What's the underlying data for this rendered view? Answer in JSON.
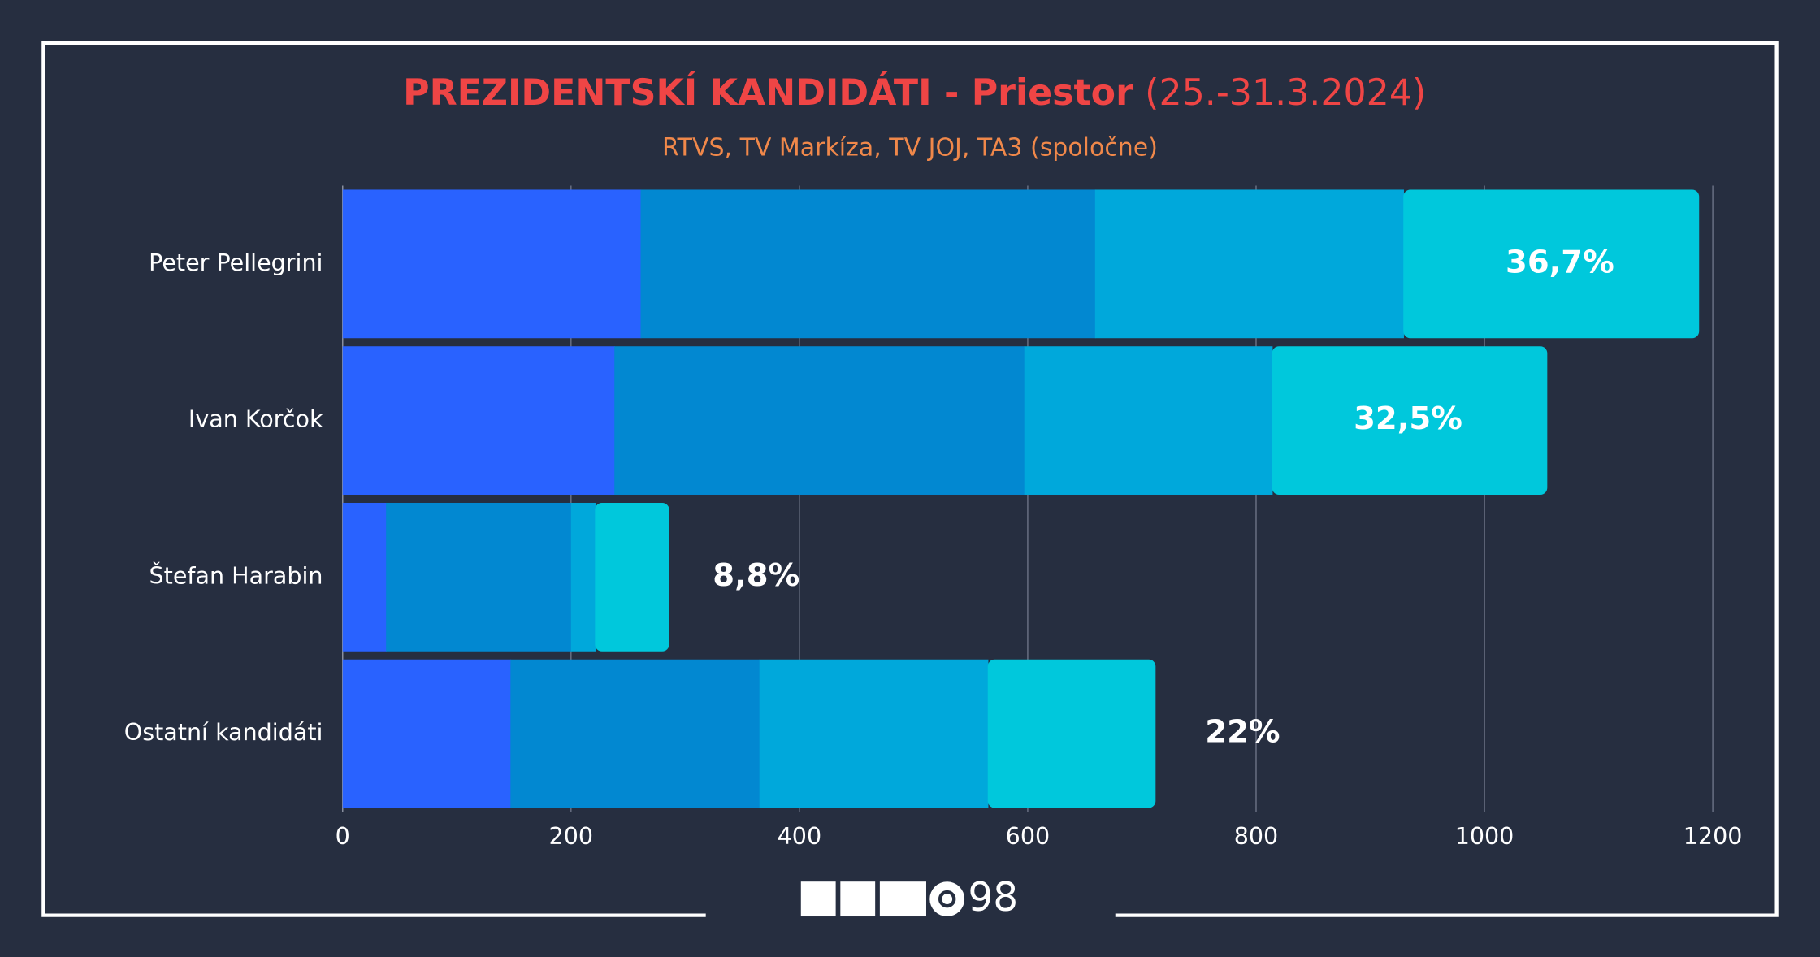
{
  "chart_data": {
    "type": "stacked-barh",
    "title": "PREZIDENTSKÍ KANDIDÁTI - Priestor",
    "title_period": "(25.-31.3.2024)",
    "subtitle": "RTVS, TV Markíza, TV JOJ, TA3 (spoločne)",
    "categories": [
      "Peter Pellegrini",
      "Ivan Korčok",
      "Štefan Harabin",
      "Ostatní kandidáti"
    ],
    "series": [
      {
        "color": "#2962ff",
        "values": [
          261,
          238,
          38,
          147
        ]
      },
      {
        "color": "#0288d1",
        "values": [
          398,
          359,
          162,
          218
        ]
      },
      {
        "color": "#00a8db",
        "values": [
          270,
          217,
          21,
          200
        ]
      },
      {
        "color": "#00c8dc",
        "values": [
          259,
          241,
          65,
          147
        ]
      }
    ],
    "share_labels": [
      "36,7%",
      "32,5%",
      "8,8%",
      "22%"
    ],
    "xlim": [
      0,
      1200
    ],
    "xticks": [
      0,
      200,
      400,
      600,
      800,
      1000,
      1200
    ],
    "grid": true,
    "logo_text": "98"
  }
}
